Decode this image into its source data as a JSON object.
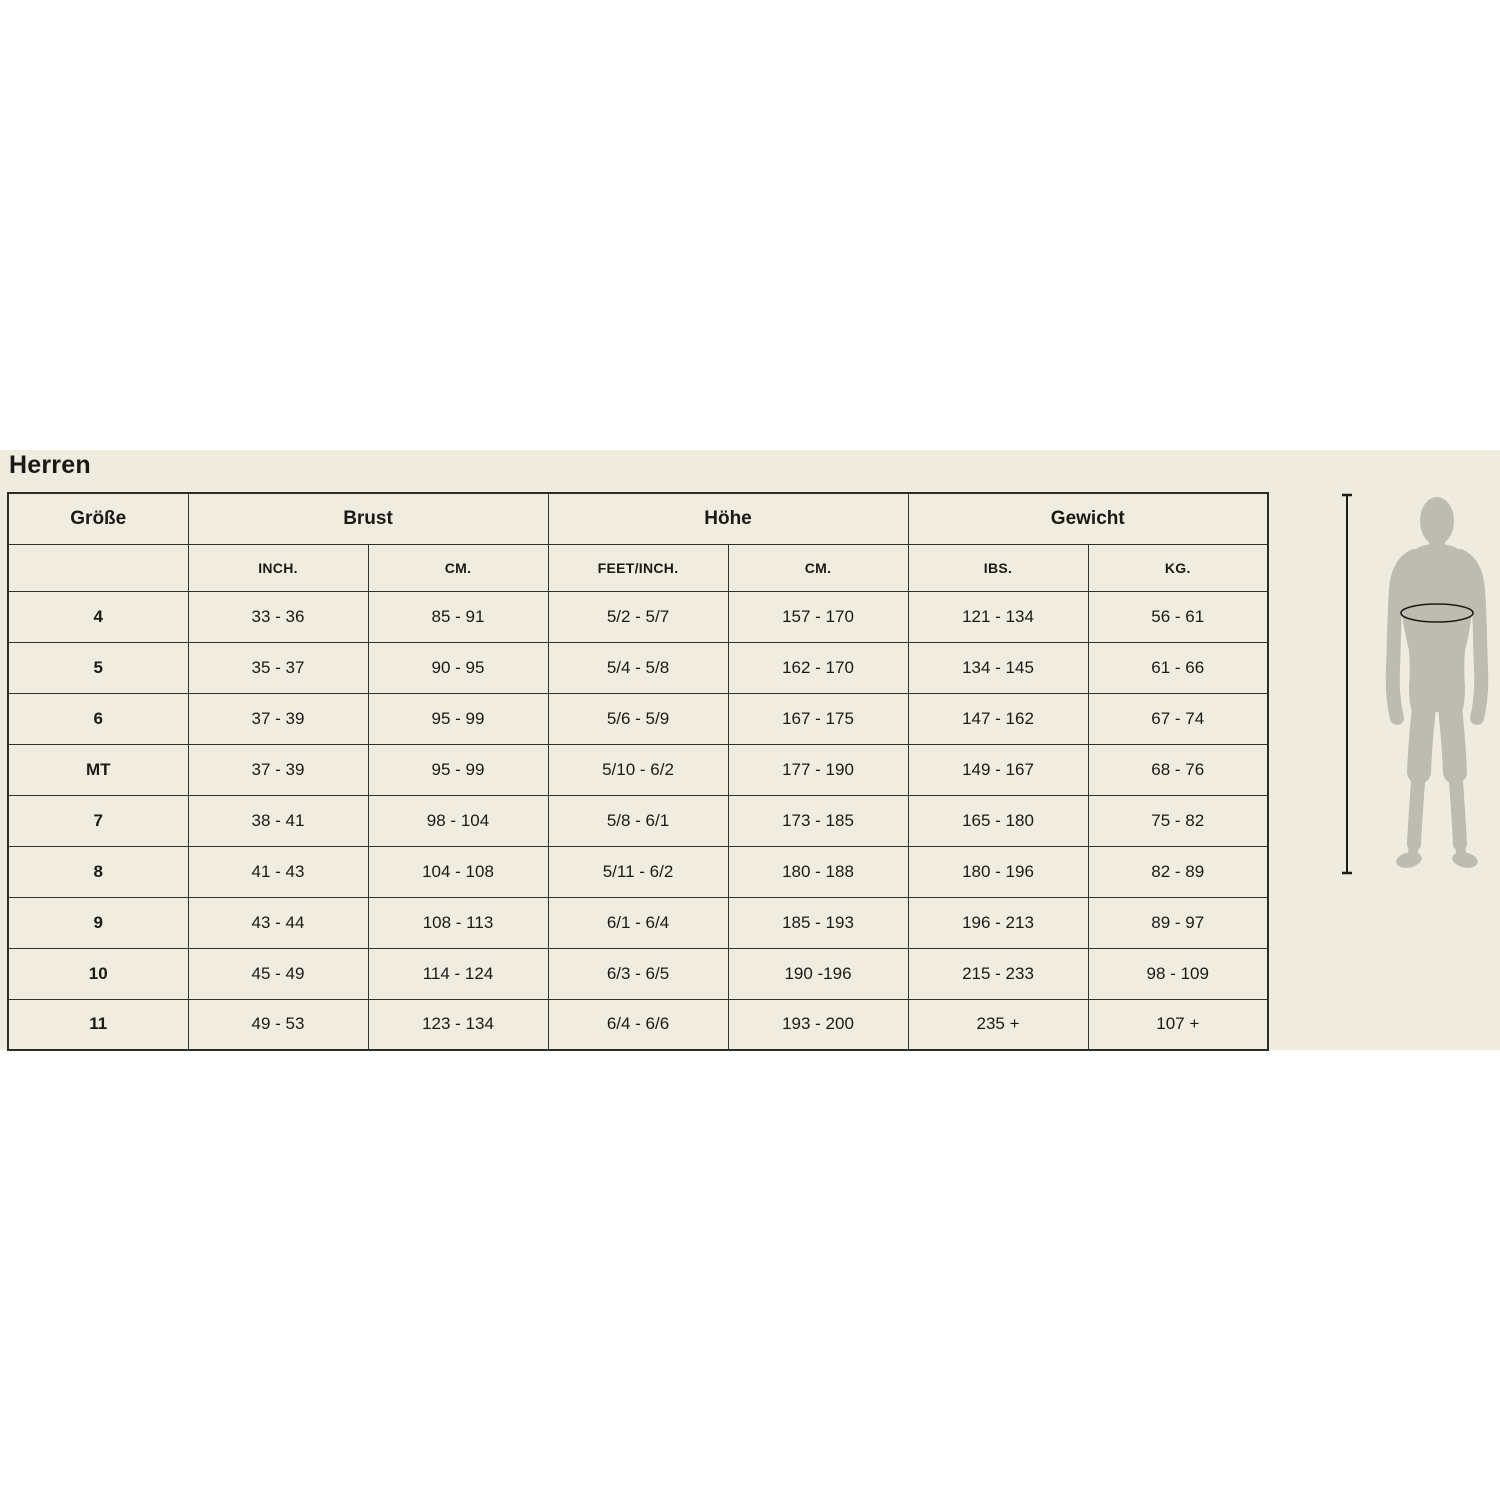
{
  "page": {
    "title": "Herren"
  },
  "chart_data": {
    "type": "table",
    "title": "Herren",
    "column_groups": [
      {
        "label": "Größe",
        "span": 1
      },
      {
        "label": "Brust",
        "span": 2
      },
      {
        "label": "Höhe",
        "span": 2
      },
      {
        "label": "Gewicht",
        "span": 2
      }
    ],
    "sub_headers": [
      "",
      "INCH.",
      "CM.",
      "FEET/INCH.",
      "CM.",
      "IBS.",
      "KG."
    ],
    "rows": [
      [
        "4",
        "33 - 36",
        "85 - 91",
        "5/2 - 5/7",
        "157 - 170",
        "121 - 134",
        "56 - 61"
      ],
      [
        "5",
        "35 - 37",
        "90 - 95",
        "5/4 - 5/8",
        "162 - 170",
        "134 - 145",
        "61 - 66"
      ],
      [
        "6",
        "37 - 39",
        "95 - 99",
        "5/6 - 5/9",
        "167 - 175",
        "147 - 162",
        "67 - 74"
      ],
      [
        "MT",
        "37 - 39",
        "95 - 99",
        "5/10 - 6/2",
        "177 - 190",
        "149 - 167",
        "68 - 76"
      ],
      [
        "7",
        "38 - 41",
        "98 - 104",
        "5/8 - 6/1",
        "173 - 185",
        "165 - 180",
        "75 - 82"
      ],
      [
        "8",
        "41 - 43",
        "104 - 108",
        "5/11 - 6/2",
        "180 - 188",
        "180 - 196",
        "82 - 89"
      ],
      [
        "9",
        "43 - 44",
        "108 - 113",
        "6/1 - 6/4",
        "185 - 193",
        "196 - 213",
        "89 - 97"
      ],
      [
        "10",
        "45 - 49",
        "114 - 124",
        "6/3 - 6/5",
        "190 -196",
        "215 - 233",
        "98 - 109"
      ],
      [
        "11",
        "49 - 53",
        "123 - 134",
        "6/4 - 6/6",
        "193 - 200",
        "235 +",
        "107 +"
      ]
    ]
  },
  "figure": {
    "description": "male body silhouette with chest circumference ellipse and vertical height measurement line",
    "colors": {
      "silhouette": "#bebbb1",
      "measure_line": "#1c1b18"
    }
  },
  "colors": {
    "page_bg": "#ffffff",
    "band_bg": "#efebde",
    "table_bg": "#f0ecdf",
    "border": "#35332d",
    "text": "#1b1a17"
  }
}
